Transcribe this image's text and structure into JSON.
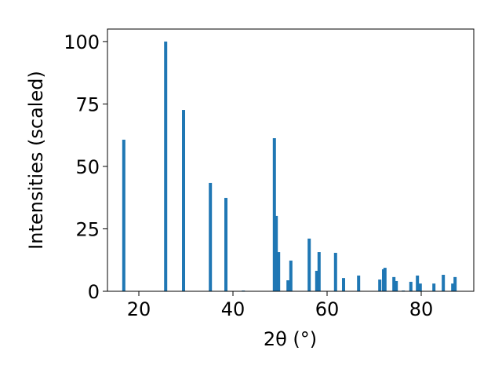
{
  "chart_data": {
    "type": "bar",
    "x_label": "2θ (°)",
    "y_label": "Intensities (scaled)",
    "x": [
      16.8,
      25.7,
      29.5,
      35.2,
      38.5,
      42.2,
      48.8,
      49.2,
      49.7,
      51.7,
      52.3,
      56.2,
      57.8,
      58.3,
      61.8,
      63.5,
      66.7,
      71.2,
      72.0,
      72.3,
      74.2,
      74.7,
      76.2,
      77.8,
      79.2,
      79.8,
      82.7,
      84.7,
      86.7,
      87.2
    ],
    "values": [
      60.7,
      100,
      72.6,
      43.4,
      37.4,
      0.3,
      61.3,
      30.2,
      15.7,
      4.4,
      12.3,
      21.1,
      8.2,
      15.7,
      15.4,
      5.3,
      6.3,
      4.7,
      8.8,
      9.4,
      5.7,
      4.1,
      0.3,
      3.8,
      6.3,
      3.1,
      3.1,
      6.6,
      3.1,
      5.7
    ],
    "color": "#1f77b4",
    "xlim": [
      13.33,
      91.17
    ],
    "xticks": [
      20,
      40,
      60,
      80
    ],
    "ylim": [
      0,
      105
    ],
    "yticks": [
      0,
      25,
      50,
      75,
      100
    ],
    "grid": false
  }
}
